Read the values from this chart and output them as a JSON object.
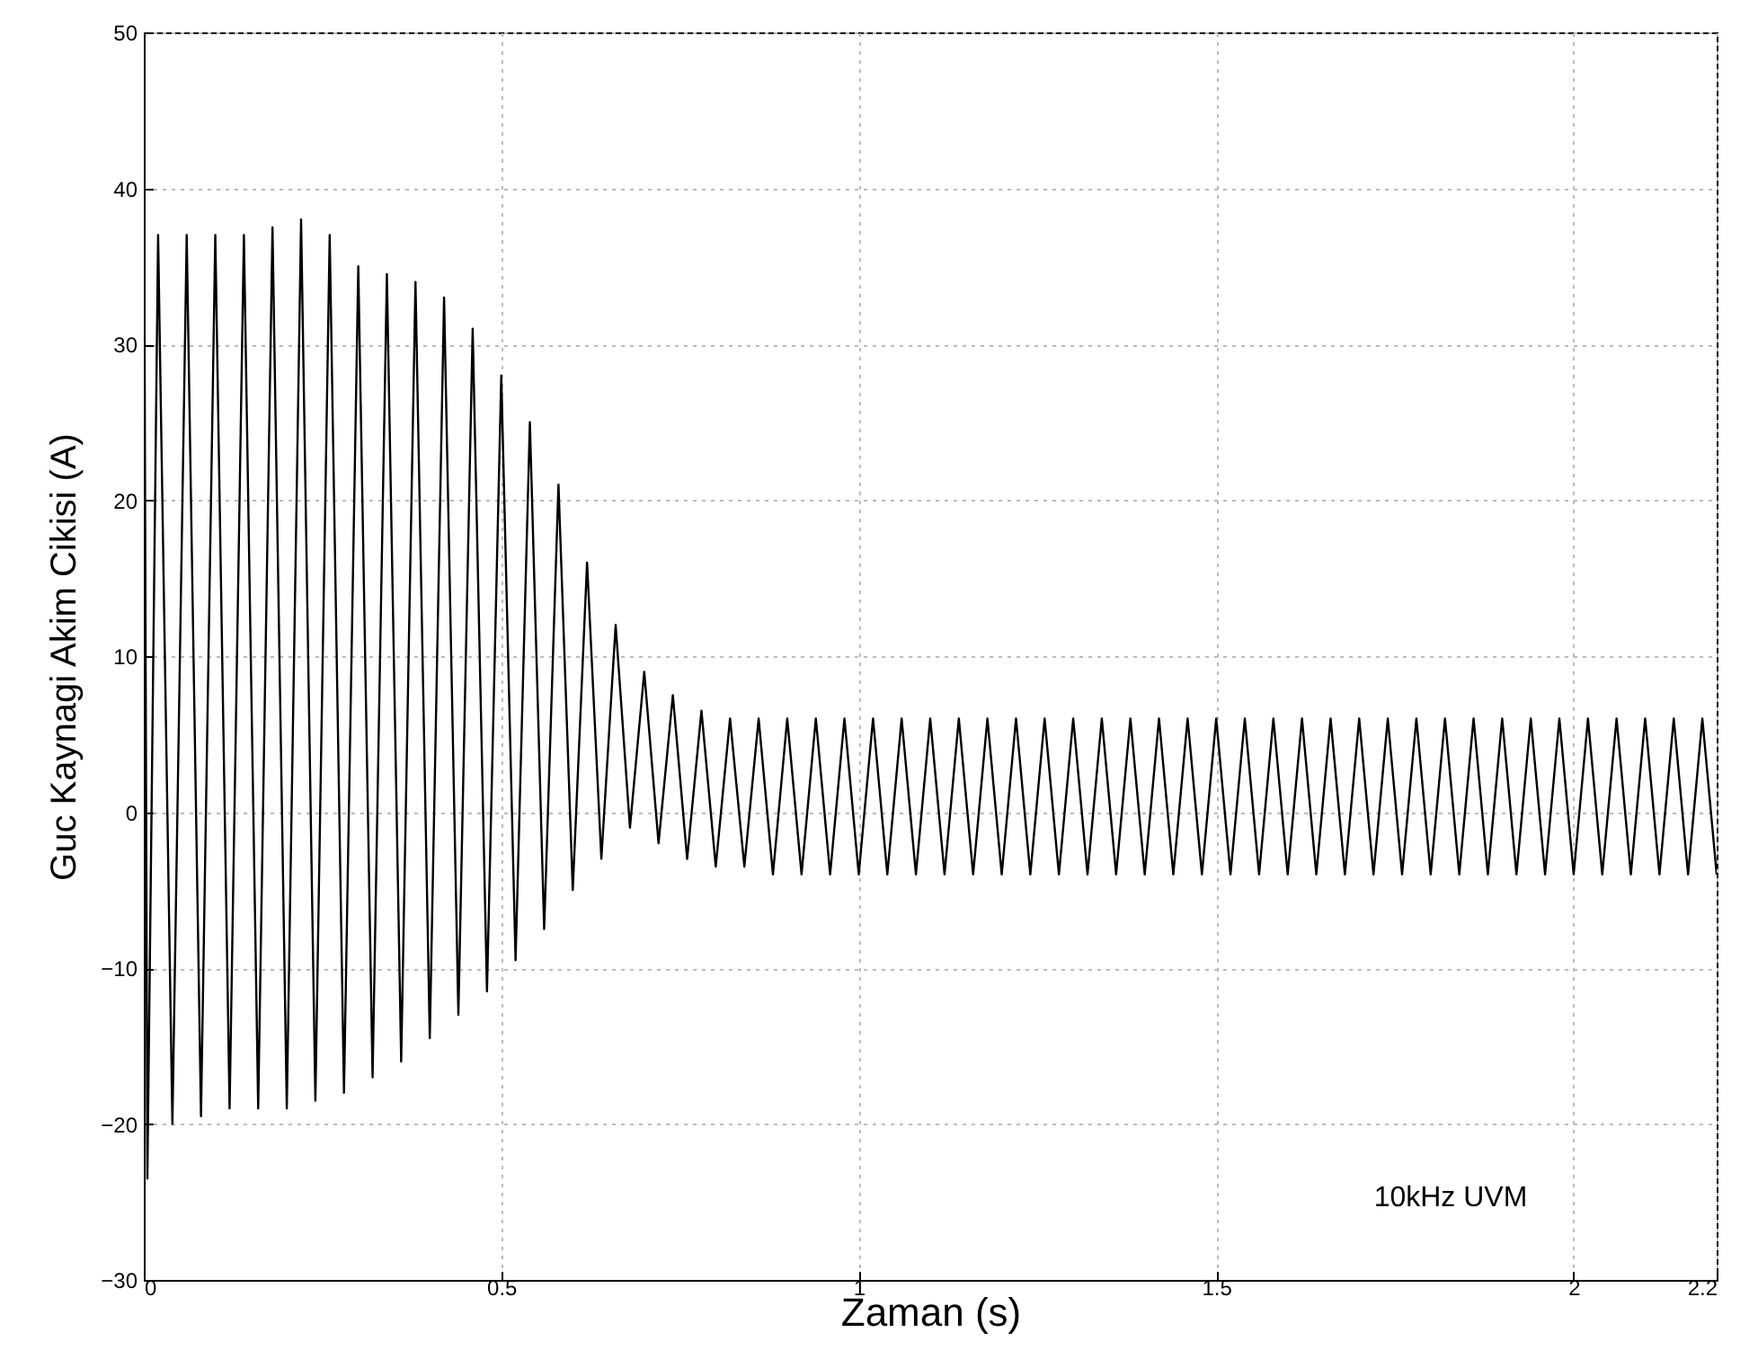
{
  "chart_data": {
    "type": "line",
    "xlabel": "Zaman (s)",
    "ylabel": "Guc Kaynagi Akim Cikisi (A)",
    "x": [
      0,
      0.005,
      0.02,
      0.04,
      0.06,
      0.08,
      0.1,
      0.12,
      0.14,
      0.16,
      0.18,
      0.2,
      0.22,
      0.24,
      0.26,
      0.28,
      0.3,
      0.32,
      0.34,
      0.36,
      0.38,
      0.4,
      0.42,
      0.44,
      0.46,
      0.48,
      0.5,
      0.52,
      0.54,
      0.56,
      0.58,
      0.6,
      0.62,
      0.64,
      0.66,
      0.68,
      0.7,
      0.72,
      0.74,
      0.76,
      0.78,
      0.8,
      0.82,
      0.84,
      0.86,
      0.88,
      0.9,
      0.92,
      0.94,
      0.96,
      0.98,
      1.0,
      1.02,
      1.04,
      1.06,
      1.08,
      1.1,
      1.12,
      1.14,
      1.16,
      1.18,
      1.2,
      1.22,
      1.24,
      1.26,
      1.28,
      1.3,
      1.32,
      1.34,
      1.36,
      1.38,
      1.4,
      1.42,
      1.44,
      1.46,
      1.48,
      1.5,
      1.52,
      1.54,
      1.56,
      1.58,
      1.6,
      1.62,
      1.64,
      1.66,
      1.68,
      1.7,
      1.72,
      1.74,
      1.76,
      1.78,
      1.8,
      1.82,
      1.84,
      1.86,
      1.88,
      1.9,
      1.92,
      1.94,
      1.96,
      1.98,
      2.0,
      2.02,
      2.04,
      2.06,
      2.08,
      2.1,
      2.12,
      2.14,
      2.16,
      2.18,
      2.2
    ],
    "series": [
      {
        "color": "#000000",
        "values": [
          45,
          -23.5,
          37,
          -20,
          37,
          -19.5,
          37,
          -19,
          37,
          -19,
          37.5,
          -19,
          38,
          -18.5,
          37,
          -18,
          35,
          -17,
          34.5,
          -16,
          34,
          -14.5,
          33,
          -13,
          31,
          -11.5,
          28,
          -9.5,
          25,
          -7.5,
          21,
          -5,
          16,
          -3,
          12,
          -1,
          9,
          -2,
          7.5,
          -3,
          6.5,
          -3.5,
          6,
          -3.5,
          6,
          -4,
          6,
          -4,
          6,
          -4,
          6,
          -4,
          6,
          -4,
          6,
          -4,
          6,
          -4,
          6,
          -4,
          6,
          -4,
          6,
          -4,
          6,
          -4,
          6,
          -4,
          6,
          -4,
          6,
          -4,
          6,
          -4,
          6,
          -4,
          6,
          -4,
          6,
          -4,
          6,
          -4,
          6,
          -4,
          6,
          -4,
          6,
          -4,
          6,
          -4,
          6,
          -4,
          6,
          -4,
          6,
          -4,
          6,
          -4,
          6,
          -4,
          6,
          -4,
          6,
          -4,
          6,
          -4,
          6,
          -4,
          6,
          -4,
          6,
          -4
        ]
      }
    ],
    "xlim": [
      0,
      2.2
    ],
    "ylim": [
      -30,
      50
    ],
    "xticks": [
      0,
      0.5,
      1,
      1.5,
      2,
      2.2
    ],
    "yticks": [
      -30,
      -20,
      -10,
      0,
      10,
      20,
      30,
      40,
      50
    ],
    "grid": true,
    "annotations": [
      "10kHz UVM"
    ]
  }
}
